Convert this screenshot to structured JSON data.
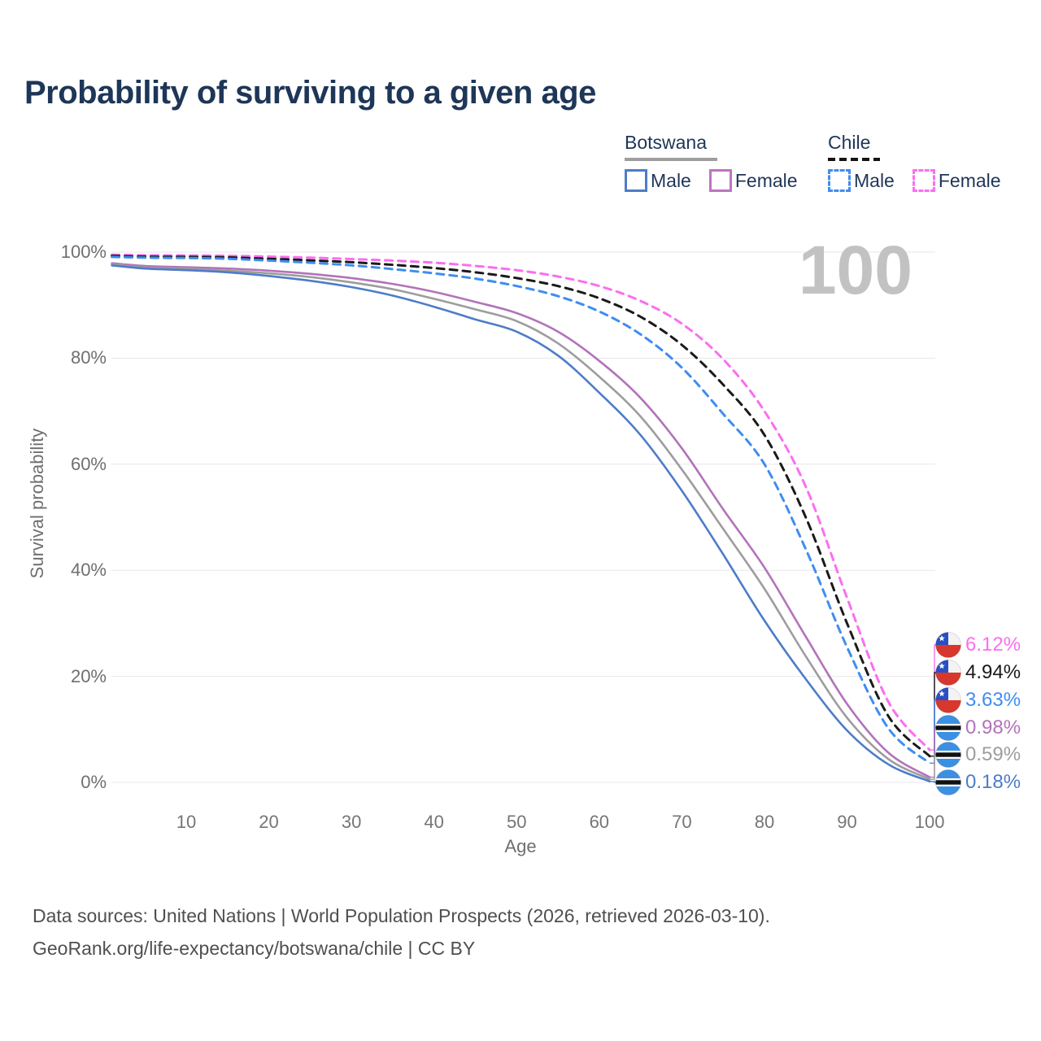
{
  "title": "Probability of surviving to a given age",
  "watermark": "100",
  "legend": {
    "groups": [
      {
        "country": "Botswana",
        "line_style": "solid",
        "underline_color": "#9e9e9e",
        "items": [
          {
            "label": "Male",
            "color": "#4d7cc9"
          },
          {
            "label": "Female",
            "color": "#bd74c0"
          }
        ]
      },
      {
        "country": "Chile",
        "line_style": "dashed",
        "underline_color": "#141414",
        "items": [
          {
            "label": "Male",
            "color": "#3f8df0"
          },
          {
            "label": "Female",
            "color": "#fb6ef0"
          }
        ]
      }
    ]
  },
  "chart_data": {
    "type": "line",
    "title": "Probability of surviving to a given age",
    "xlabel": "Age",
    "ylabel": "Survival probability",
    "xlim": [
      1,
      100
    ],
    "ylim": [
      0,
      100
    ],
    "grid": "horizontal",
    "legend_position": "top-right",
    "x_ticks": [
      {
        "value": 10,
        "label": "10"
      },
      {
        "value": 20,
        "label": "20"
      },
      {
        "value": 30,
        "label": "30"
      },
      {
        "value": 40,
        "label": "40"
      },
      {
        "value": 50,
        "label": "50"
      },
      {
        "value": 60,
        "label": "60"
      },
      {
        "value": 70,
        "label": "70"
      },
      {
        "value": 80,
        "label": "80"
      },
      {
        "value": 90,
        "label": "90"
      },
      {
        "value": 100,
        "label": "100"
      }
    ],
    "y_ticks": [
      {
        "value": 0,
        "label": "0%"
      },
      {
        "value": 20,
        "label": "20%"
      },
      {
        "value": 40,
        "label": "40%"
      },
      {
        "value": 60,
        "label": "60%"
      },
      {
        "value": 80,
        "label": "80%"
      },
      {
        "value": 100,
        "label": "100%"
      }
    ],
    "x": [
      1,
      5,
      10,
      15,
      20,
      25,
      30,
      35,
      40,
      45,
      50,
      55,
      60,
      65,
      70,
      75,
      80,
      85,
      90,
      95,
      100
    ],
    "series": [
      {
        "name": "Chile Female",
        "country": "chile",
        "dash": true,
        "color": "#fb6ef0",
        "end_label": "6.12%",
        "end_value": 6.12,
        "values": [
          99.5,
          99.4,
          99.35,
          99.3,
          99.15,
          98.95,
          98.7,
          98.4,
          98.0,
          97.4,
          96.6,
          95.4,
          93.6,
          90.8,
          86.5,
          79.8,
          70.0,
          55.8,
          34.8,
          15.2,
          6.12
        ]
      },
      {
        "name": "Chile Both sexes",
        "country": "chile",
        "dash": true,
        "color": "#1a1a1a",
        "end_label": "4.94%",
        "end_value": 4.94,
        "values": [
          99.3,
          99.15,
          99.1,
          99.0,
          98.75,
          98.45,
          98.1,
          97.6,
          97.0,
          96.2,
          95.1,
          93.6,
          91.3,
          87.8,
          82.5,
          75.0,
          65.5,
          50.0,
          30.0,
          12.5,
          4.94
        ]
      },
      {
        "name": "Chile Male",
        "country": "chile",
        "dash": true,
        "color": "#3f8df0",
        "end_label": "3.63%",
        "end_value": 3.63,
        "values": [
          99.1,
          98.95,
          98.9,
          98.75,
          98.4,
          98.0,
          97.5,
          96.8,
          96.0,
          95.0,
          93.6,
          91.7,
          88.8,
          84.5,
          78.2,
          69.5,
          60.0,
          44.0,
          25.5,
          10.2,
          3.63
        ]
      },
      {
        "name": "Botswana Female",
        "country": "botswana",
        "dash": false,
        "color": "#b273ba",
        "end_label": "0.98%",
        "end_value": 0.98,
        "values": [
          97.9,
          97.4,
          97.15,
          96.9,
          96.5,
          95.9,
          95.1,
          94.0,
          92.5,
          90.6,
          88.5,
          85.0,
          79.5,
          72.5,
          63.0,
          51.5,
          40.5,
          27.5,
          14.8,
          5.6,
          0.98
        ]
      },
      {
        "name": "Botswana Both sexes",
        "country": "botswana",
        "dash": false,
        "color": "#9d9d9d",
        "end_label": "0.59%",
        "end_value": 0.59,
        "values": [
          97.7,
          97.1,
          96.85,
          96.5,
          96.0,
          95.3,
          94.3,
          93.0,
          91.2,
          89.2,
          87.0,
          82.8,
          76.5,
          69.0,
          59.0,
          47.8,
          36.5,
          23.8,
          12.2,
          4.4,
          0.59
        ]
      },
      {
        "name": "Botswana Male",
        "country": "botswana",
        "dash": false,
        "color": "#4d7cc9",
        "end_label": "0.18%",
        "end_value": 0.18,
        "values": [
          97.5,
          96.9,
          96.6,
          96.2,
          95.5,
          94.6,
          93.4,
          91.8,
          89.7,
          87.3,
          85.0,
          80.5,
          73.5,
          65.5,
          55.0,
          43.0,
          30.5,
          19.5,
          9.8,
          3.4,
          0.18
        ]
      }
    ]
  },
  "footer": {
    "line1": "Data sources: United Nations | World Population Prospects (2026, retrieved 2026-03-10).",
    "line2": "GeoRank.org/life-expectancy/botswana/chile | CC BY"
  }
}
